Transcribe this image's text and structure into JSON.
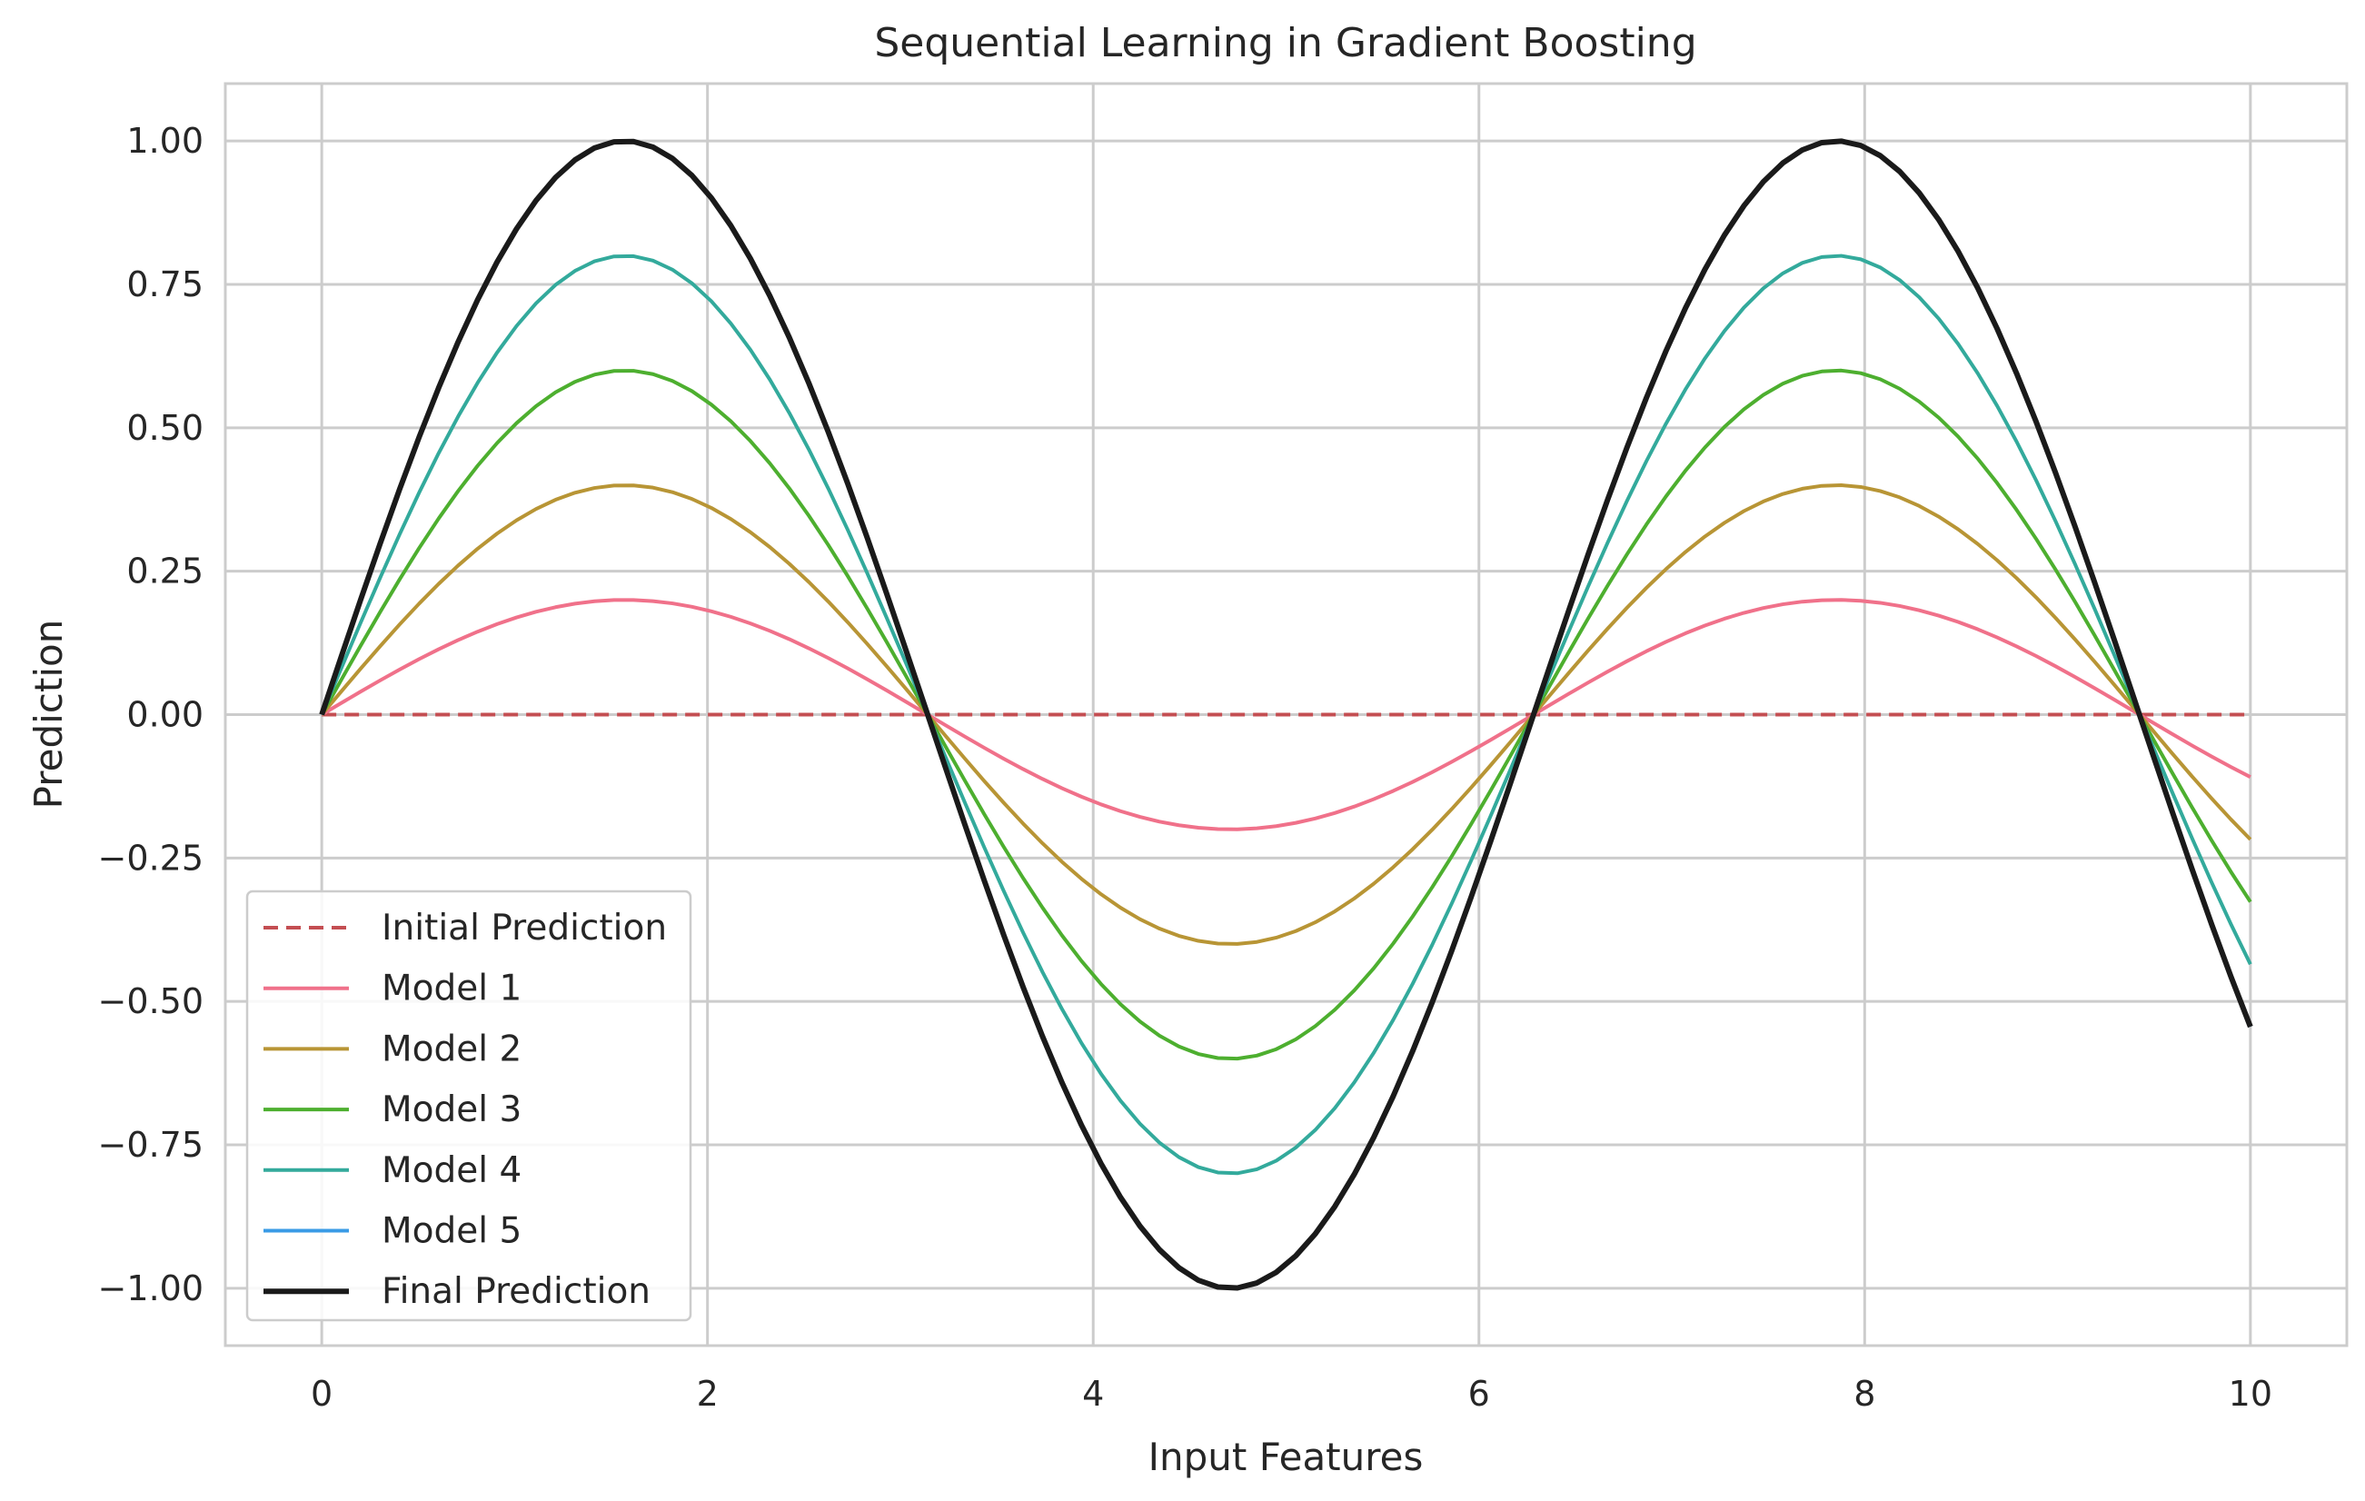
{
  "chart_data": {
    "type": "line",
    "title": "Sequential Learning in Gradient Boosting",
    "xlabel": "Input Features",
    "ylabel": "Prediction",
    "xlim": [
      -0.5,
      10.5
    ],
    "ylim": [
      -1.1,
      1.1
    ],
    "xticks": [
      0,
      2,
      4,
      6,
      8,
      10
    ],
    "xtick_labels": [
      "0",
      "2",
      "4",
      "6",
      "8",
      "10"
    ],
    "yticks": [
      1.0,
      0.75,
      0.5,
      0.25,
      0.0,
      -0.25,
      -0.5,
      -0.75,
      -1.0
    ],
    "ytick_labels": [
      "1.00",
      "0.75",
      "0.50",
      "0.25",
      "0.00",
      "−0.25",
      "−0.50",
      "−0.75",
      "−1.00"
    ],
    "grid": true,
    "legend_position": "lower-left",
    "x_range": [
      0,
      10
    ],
    "series": [
      {
        "name": "Initial Prediction",
        "function": "constant",
        "value": 0,
        "color": "#c44e52",
        "dashed": true
      },
      {
        "name": "Model 1",
        "function": "sin",
        "amplitude": 0.2,
        "color": "#f0718a",
        "dashed": false
      },
      {
        "name": "Model 2",
        "function": "sin",
        "amplitude": 0.4,
        "color": "#b89535",
        "dashed": false
      },
      {
        "name": "Model 3",
        "function": "sin",
        "amplitude": 0.6,
        "color": "#4daf2f",
        "dashed": false
      },
      {
        "name": "Model 4",
        "function": "sin",
        "amplitude": 0.8,
        "color": "#33aa9c",
        "dashed": false
      },
      {
        "name": "Model 5",
        "function": "sin",
        "amplitude": 1.0,
        "color": "#3a9be6",
        "dashed": false
      },
      {
        "name": "Final Prediction",
        "function": "sin",
        "amplitude": 1.0,
        "color": "#1a1a1a",
        "dashed": false
      }
    ]
  }
}
